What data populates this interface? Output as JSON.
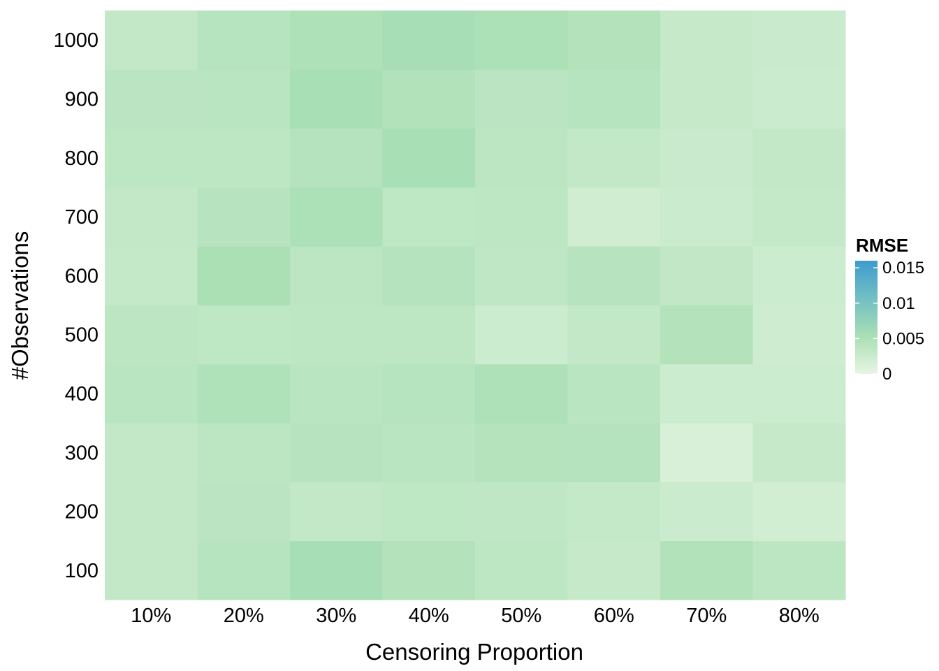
{
  "chart_data": {
    "type": "heatmap",
    "title": "",
    "xlabel": "Censoring Proportion",
    "ylabel": "#Observations",
    "x_categories": [
      "10%",
      "20%",
      "30%",
      "40%",
      "50%",
      "60%",
      "70%",
      "80%"
    ],
    "y_categories": [
      "100",
      "200",
      "300",
      "400",
      "500",
      "600",
      "700",
      "800",
      "900",
      "1000"
    ],
    "values": [
      [
        0.0032,
        0.0042,
        0.0055,
        0.0045,
        0.0036,
        0.0028,
        0.0046,
        0.0037
      ],
      [
        0.0031,
        0.0038,
        0.0032,
        0.0035,
        0.0034,
        0.003,
        0.0024,
        0.0019
      ],
      [
        0.0031,
        0.0037,
        0.0041,
        0.004,
        0.0044,
        0.0043,
        0.0012,
        0.0029
      ],
      [
        0.004,
        0.0047,
        0.0039,
        0.0042,
        0.0049,
        0.0039,
        0.0023,
        0.0023
      ],
      [
        0.0037,
        0.0035,
        0.0036,
        0.0036,
        0.0023,
        0.0032,
        0.0045,
        0.0022
      ],
      [
        0.003,
        0.0052,
        0.0037,
        0.0043,
        0.0034,
        0.0041,
        0.0033,
        0.0023
      ],
      [
        0.0032,
        0.0041,
        0.0051,
        0.0035,
        0.0036,
        0.002,
        0.0025,
        0.003
      ],
      [
        0.0036,
        0.0036,
        0.0043,
        0.0054,
        0.0037,
        0.0032,
        0.0026,
        0.0032
      ],
      [
        0.0038,
        0.004,
        0.0053,
        0.0046,
        0.0038,
        0.0042,
        0.0028,
        0.0025
      ],
      [
        0.0031,
        0.0042,
        0.0048,
        0.0055,
        0.0051,
        0.0045,
        0.0029,
        0.0026
      ]
    ],
    "legend": {
      "title": "RMSE",
      "position": "right",
      "min": 0,
      "max": 0.016,
      "ticks": [
        0,
        0.005,
        0.01,
        0.015
      ],
      "tick_labels": [
        "0",
        "0.005",
        "0.01",
        "0.015"
      ],
      "colors": [
        "#e7f5e3",
        "#a9dfb4",
        "#72bfc4",
        "#3e9ccd"
      ]
    },
    "grid": false
  }
}
